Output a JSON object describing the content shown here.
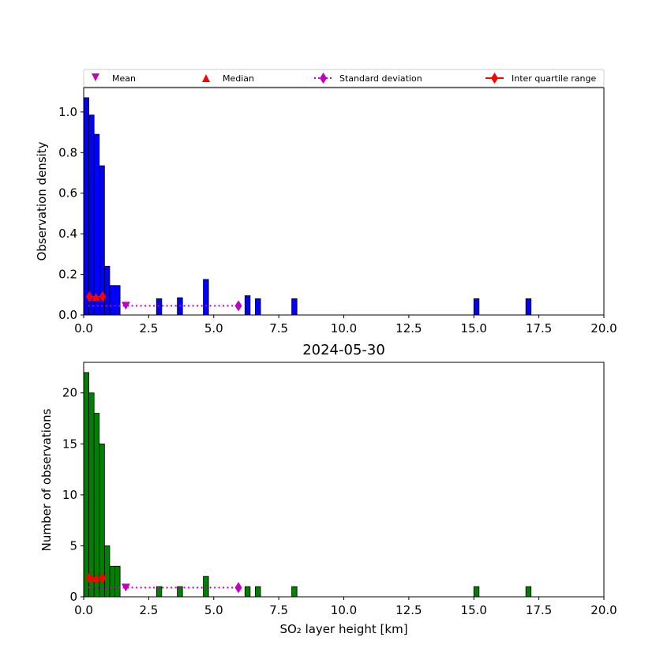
{
  "figure_title": "2024-05-30",
  "legend": [
    {
      "label": "Mean",
      "marker": "triangle-down",
      "color": "#bf00bf"
    },
    {
      "label": "Median",
      "marker": "triangle-up",
      "color": "#ff0000"
    },
    {
      "label": "Standard deviation",
      "marker": "diamond-dotted-line",
      "color": "#bf00bf"
    },
    {
      "label": "Inter quartile range",
      "marker": "diamond-solid-line",
      "color": "#ff0000"
    }
  ],
  "chart_data": [
    {
      "type": "bar",
      "panel": "top",
      "title": "",
      "xlabel": "",
      "ylabel": "Observation density",
      "xlim": [
        0,
        20
      ],
      "ylim": [
        0,
        1.12
      ],
      "xticks": [
        "0.0",
        "2.5",
        "5.0",
        "7.5",
        "10.0",
        "12.5",
        "15.0",
        "17.5",
        "20.0"
      ],
      "yticks": [
        "0.0",
        "0.2",
        "0.4",
        "0.6",
        "0.8",
        "1.0"
      ],
      "bar_color": "#0000ff",
      "bin_width": 0.2,
      "bins": [
        {
          "x": 0.0,
          "value": 1.07
        },
        {
          "x": 0.2,
          "value": 0.985
        },
        {
          "x": 0.4,
          "value": 0.89
        },
        {
          "x": 0.6,
          "value": 0.735
        },
        {
          "x": 0.8,
          "value": 0.24
        },
        {
          "x": 1.0,
          "value": 0.145
        },
        {
          "x": 1.2,
          "value": 0.145
        },
        {
          "x": 2.8,
          "value": 0.08
        },
        {
          "x": 3.6,
          "value": 0.085
        },
        {
          "x": 4.6,
          "value": 0.175
        },
        {
          "x": 6.2,
          "value": 0.095
        },
        {
          "x": 6.6,
          "value": 0.08
        },
        {
          "x": 8.0,
          "value": 0.08
        },
        {
          "x": 15.0,
          "value": 0.08
        },
        {
          "x": 17.0,
          "value": 0.08
        }
      ],
      "stats": {
        "level": 0.045,
        "mean": 1.62,
        "std_dev_range": [
          0.17,
          5.95
        ],
        "iqr_level": 0.09,
        "median": 0.47,
        "iqr_range": [
          0.22,
          0.73
        ]
      }
    },
    {
      "type": "bar",
      "panel": "bottom",
      "title": "2024-05-30",
      "xlabel": "SO₂ layer height [km]",
      "ylabel": "Number of observations",
      "xlim": [
        0,
        20
      ],
      "ylim": [
        0,
        23
      ],
      "xticks": [
        "0.0",
        "2.5",
        "5.0",
        "7.5",
        "10.0",
        "12.5",
        "15.0",
        "17.5",
        "20.0"
      ],
      "yticks": [
        "0",
        "5",
        "10",
        "15",
        "20"
      ],
      "bar_color": "#008000",
      "bin_width": 0.2,
      "bins": [
        {
          "x": 0.0,
          "value": 22
        },
        {
          "x": 0.2,
          "value": 20
        },
        {
          "x": 0.4,
          "value": 18
        },
        {
          "x": 0.6,
          "value": 15
        },
        {
          "x": 0.8,
          "value": 5
        },
        {
          "x": 1.0,
          "value": 3
        },
        {
          "x": 1.2,
          "value": 3
        },
        {
          "x": 2.8,
          "value": 1
        },
        {
          "x": 3.6,
          "value": 1
        },
        {
          "x": 4.6,
          "value": 2
        },
        {
          "x": 6.2,
          "value": 1
        },
        {
          "x": 6.6,
          "value": 1
        },
        {
          "x": 8.0,
          "value": 1
        },
        {
          "x": 15.0,
          "value": 1
        },
        {
          "x": 17.0,
          "value": 1
        }
      ],
      "stats": {
        "level": 0.9,
        "mean": 1.62,
        "std_dev_range": [
          0.17,
          5.95
        ],
        "iqr_level": 1.85,
        "median": 0.47,
        "iqr_range": [
          0.22,
          0.73
        ]
      }
    }
  ]
}
